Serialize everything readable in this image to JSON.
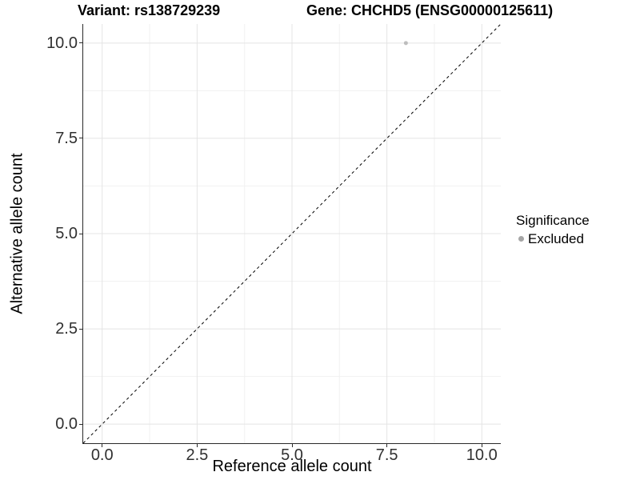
{
  "title": {
    "left": "Variant: rs138729239",
    "right": "Gene: CHCHD5 (ENSG00000125611)"
  },
  "chart_data": {
    "type": "scatter",
    "xlabel": "Reference allele count",
    "ylabel": "Alternative allele count",
    "xlim": [
      -0.5,
      10.5
    ],
    "ylim": [
      -0.5,
      10.5
    ],
    "xticks": [
      {
        "label": "0.0",
        "value": 0
      },
      {
        "label": "2.5",
        "value": 2.5
      },
      {
        "label": "5.0",
        "value": 5
      },
      {
        "label": "7.5",
        "value": 7.5
      },
      {
        "label": "10.0",
        "value": 10
      }
    ],
    "yticks": [
      {
        "label": "0.0",
        "value": 0
      },
      {
        "label": "2.5",
        "value": 2.5
      },
      {
        "label": "5.0",
        "value": 5
      },
      {
        "label": "7.5",
        "value": 7.5
      },
      {
        "label": "10.0",
        "value": 10
      }
    ],
    "xminor": [
      1.25,
      3.75,
      6.25,
      8.75
    ],
    "yminor": [
      1.25,
      3.75,
      6.25,
      8.75
    ],
    "grid": "major+minor",
    "reference_line": {
      "kind": "identity y=x",
      "x1": -0.5,
      "y1": -0.5,
      "x2": 10.5,
      "y2": 10.5,
      "style": "dashed",
      "color": "#000000"
    },
    "series": [
      {
        "name": "Excluded",
        "color": "#bdbdbd",
        "point_radius": 2.5,
        "points": [
          {
            "x": 8,
            "y": 10
          }
        ]
      }
    ],
    "legend": {
      "title": "Significance",
      "position": "right",
      "entries": [
        {
          "label": "Excluded",
          "color": "#a6a6a6"
        }
      ]
    }
  },
  "colors": {
    "background": "#ffffff",
    "grid_major": "#e4e4e4",
    "grid_minor": "#f1f1f1",
    "axis_line": "#2a2a2a",
    "tick_text": "#303030"
  }
}
